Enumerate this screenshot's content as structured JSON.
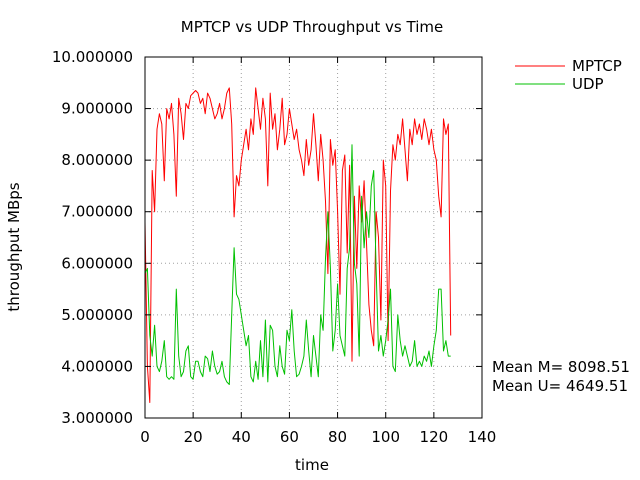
{
  "chart_data": {
    "type": "line",
    "title": "MPTCP vs UDP Throughput vs Time",
    "xlabel": "time",
    "ylabel": "throughput MBps",
    "xlim": [
      0,
      140
    ],
    "ylim": [
      3,
      10
    ],
    "x_ticks": [
      0,
      20,
      40,
      60,
      80,
      100,
      120,
      140
    ],
    "x_tick_labels": [
      "0",
      "20",
      "40",
      "60",
      "80",
      "100",
      "120",
      "140"
    ],
    "y_ticks": [
      3,
      4,
      5,
      6,
      7,
      8,
      9,
      10
    ],
    "y_tick_labels": [
      "3.000000",
      "4.000000",
      "5.000000",
      "6.000000",
      "7.000000",
      "8.000000",
      "9.000000",
      "10.000000"
    ],
    "grid": true,
    "legend_position": "top-right, outside plot",
    "series": [
      {
        "name": "MPTCP",
        "color": "#ff0000",
        "x": [
          0,
          1,
          2,
          3,
          4,
          5,
          6,
          7,
          8,
          9,
          10,
          11,
          12,
          13,
          14,
          15,
          16,
          17,
          18,
          19,
          20,
          21,
          22,
          23,
          24,
          25,
          26,
          27,
          28,
          29,
          30,
          31,
          32,
          33,
          34,
          35,
          36,
          37,
          38,
          39,
          40,
          41,
          42,
          43,
          44,
          45,
          46,
          47,
          48,
          49,
          50,
          51,
          52,
          53,
          54,
          55,
          56,
          57,
          58,
          59,
          60,
          61,
          62,
          63,
          64,
          65,
          66,
          67,
          68,
          69,
          70,
          71,
          72,
          73,
          74,
          75,
          76,
          77,
          78,
          79,
          80,
          81,
          82,
          83,
          84,
          85,
          86,
          87,
          88,
          89,
          90,
          91,
          92,
          93,
          94,
          95,
          96,
          97,
          98,
          99,
          100,
          101,
          102,
          103,
          104,
          105,
          106,
          107,
          108,
          109,
          110,
          111,
          112,
          113,
          114,
          115,
          116,
          117,
          118,
          119,
          120,
          121,
          122,
          123,
          124,
          125,
          126,
          127
        ],
        "values": [
          6.8,
          4.0,
          3.3,
          7.8,
          7.0,
          8.6,
          8.9,
          8.7,
          7.6,
          9.0,
          8.8,
          9.1,
          8.5,
          7.3,
          9.2,
          8.9,
          8.4,
          9.1,
          9.0,
          9.25,
          9.3,
          9.35,
          9.3,
          9.1,
          9.2,
          8.9,
          9.3,
          9.2,
          9.0,
          8.8,
          8.9,
          9.1,
          8.8,
          9.0,
          9.3,
          9.4,
          8.7,
          6.9,
          7.7,
          7.5,
          8.0,
          8.3,
          8.6,
          8.2,
          8.8,
          8.5,
          9.4,
          9.0,
          8.6,
          9.2,
          8.8,
          7.5,
          9.3,
          8.6,
          8.9,
          8.2,
          8.6,
          9.2,
          8.3,
          8.5,
          9.0,
          8.7,
          8.4,
          8.6,
          8.2,
          8.0,
          7.7,
          8.4,
          7.9,
          8.2,
          8.9,
          8.3,
          7.6,
          8.5,
          8.0,
          7.2,
          5.8,
          8.4,
          7.9,
          8.2,
          7.0,
          5.4,
          7.8,
          8.1,
          6.2,
          7.9,
          4.1,
          7.3,
          5.9,
          7.5,
          6.8,
          7.6,
          6.4,
          5.2,
          4.7,
          4.4,
          7.0,
          6.5,
          4.9,
          8.0,
          7.5,
          4.5,
          7.4,
          8.3,
          8.0,
          8.5,
          8.3,
          8.8,
          8.2,
          7.6,
          8.6,
          8.3,
          8.8,
          8.5,
          8.7,
          8.4,
          8.8,
          8.6,
          8.3,
          8.6,
          8.2,
          8.0,
          7.3,
          6.9,
          8.8,
          8.5,
          8.7,
          4.6
        ]
      },
      {
        "name": "UDP",
        "color": "#00c000",
        "x": [
          0,
          1,
          2,
          3,
          4,
          5,
          6,
          7,
          8,
          9,
          10,
          11,
          12,
          13,
          14,
          15,
          16,
          17,
          18,
          19,
          20,
          21,
          22,
          23,
          24,
          25,
          26,
          27,
          28,
          29,
          30,
          31,
          32,
          33,
          34,
          35,
          36,
          37,
          38,
          39,
          40,
          41,
          42,
          43,
          44,
          45,
          46,
          47,
          48,
          49,
          50,
          51,
          52,
          53,
          54,
          55,
          56,
          57,
          58,
          59,
          60,
          61,
          62,
          63,
          64,
          65,
          66,
          67,
          68,
          69,
          70,
          71,
          72,
          73,
          74,
          75,
          76,
          77,
          78,
          79,
          80,
          81,
          82,
          83,
          84,
          85,
          86,
          87,
          88,
          89,
          90,
          91,
          92,
          93,
          94,
          95,
          96,
          97,
          98,
          99,
          100,
          101,
          102,
          103,
          104,
          105,
          106,
          107,
          108,
          109,
          110,
          111,
          112,
          113,
          114,
          115,
          116,
          117,
          118,
          119,
          120,
          121,
          122,
          123,
          124,
          125,
          126,
          127
        ],
        "values": [
          5.8,
          5.9,
          4.6,
          4.2,
          4.8,
          4.0,
          3.9,
          4.1,
          4.5,
          3.8,
          3.75,
          3.8,
          3.75,
          5.5,
          4.2,
          3.8,
          3.9,
          4.3,
          4.4,
          3.8,
          3.75,
          4.1,
          4.1,
          3.9,
          3.8,
          4.2,
          4.15,
          3.9,
          4.3,
          4.0,
          3.85,
          3.9,
          4.1,
          3.8,
          3.7,
          3.65,
          5.0,
          6.3,
          5.4,
          5.3,
          5.0,
          4.7,
          4.4,
          4.6,
          3.8,
          3.7,
          4.1,
          3.75,
          4.5,
          3.8,
          4.9,
          3.7,
          4.8,
          4.7,
          4.0,
          3.8,
          4.4,
          4.0,
          3.85,
          4.7,
          4.5,
          5.1,
          4.3,
          3.8,
          3.85,
          4.0,
          4.2,
          4.9,
          4.3,
          3.8,
          4.6,
          4.2,
          3.8,
          5.0,
          4.7,
          6.1,
          7.0,
          5.9,
          4.3,
          4.7,
          5.6,
          4.6,
          4.4,
          4.2,
          5.9,
          6.3,
          8.3,
          6.0,
          5.6,
          4.2,
          7.3,
          6.3,
          7.0,
          6.5,
          7.5,
          7.8,
          5.9,
          4.3,
          4.6,
          4.2,
          4.5,
          4.9,
          5.5,
          4.0,
          3.9,
          5.0,
          4.5,
          4.2,
          4.4,
          4.2,
          4.0,
          4.1,
          4.5,
          4.0,
          4.1,
          4.0,
          4.2,
          4.1,
          4.3,
          4.0,
          4.4,
          4.7,
          5.5,
          5.5,
          4.3,
          4.5,
          4.2,
          4.2
        ]
      }
    ],
    "annotations": [
      "Mean M= 8098.51",
      "Mean U= 4649.51"
    ]
  }
}
